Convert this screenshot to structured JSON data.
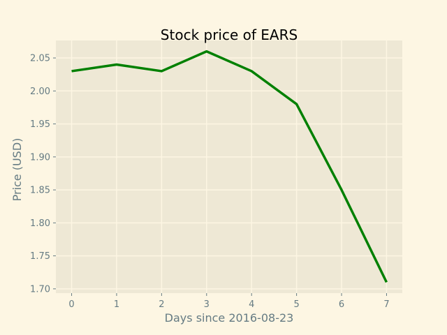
{
  "chart_data": {
    "type": "line",
    "title": "Stock price of EARS",
    "xlabel": "Days since 2016-08-23",
    "ylabel": "Price (USD)",
    "x": [
      0,
      1,
      2,
      3,
      4,
      5,
      6,
      7
    ],
    "series": [
      {
        "values": [
          2.03,
          2.04,
          2.03,
          2.06,
          2.03,
          1.98,
          1.85,
          1.71
        ]
      }
    ],
    "xlim": [
      -0.35,
      7.35
    ],
    "ylim": [
      1.6935,
      2.0765
    ],
    "xticks": [
      0,
      1,
      2,
      3,
      4,
      5,
      6,
      7
    ],
    "xtick_labels": [
      "0",
      "1",
      "2",
      "3",
      "4",
      "5",
      "6",
      "7"
    ],
    "yticks": [
      1.7,
      1.75,
      1.8,
      1.85,
      1.9,
      1.95,
      2.0,
      2.05
    ],
    "ytick_labels": [
      "1.70",
      "1.75",
      "1.80",
      "1.85",
      "1.90",
      "1.95",
      "2.00",
      "2.05"
    ],
    "grid": true,
    "legend": false,
    "colors": {
      "figure_background": "#fdf6e3",
      "axes_background": "#eee8d5",
      "grid": "#fdf6e3",
      "line": "#008000",
      "tick_label": "#657b83",
      "axis_label": "#657b83",
      "title": "#000000"
    }
  }
}
